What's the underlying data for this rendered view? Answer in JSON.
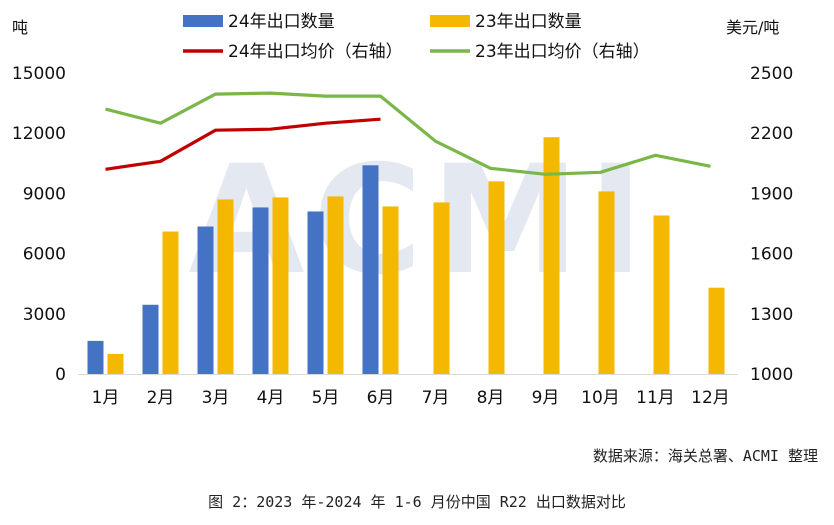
{
  "chart_data": {
    "type": "bar",
    "categories": [
      "1月",
      "2月",
      "3月",
      "4月",
      "5月",
      "6月",
      "7月",
      "8月",
      "9月",
      "10月",
      "11月",
      "12月"
    ],
    "series": [
      {
        "name": "24年出口数量",
        "kind": "bar",
        "axis": "left",
        "color": "#4472C4",
        "values": [
          1650,
          3450,
          7350,
          8300,
          8100,
          10400,
          null,
          null,
          null,
          null,
          null,
          null
        ]
      },
      {
        "name": "23年出口数量",
        "kind": "bar",
        "axis": "left",
        "color": "#F5B800",
        "values": [
          1000,
          7100,
          8700,
          8800,
          8850,
          8350,
          8550,
          9600,
          11800,
          9100,
          7900,
          4300
        ]
      },
      {
        "name": "24年出口均价（右轴）",
        "kind": "line",
        "axis": "right",
        "color": "#C00000",
        "values": [
          2020,
          2060,
          2215,
          2220,
          2250,
          2270,
          null,
          null,
          null,
          null,
          null,
          null
        ]
      },
      {
        "name": "23年出口均价（右轴）",
        "kind": "line",
        "axis": "right",
        "color": "#7AB648",
        "values": [
          2320,
          2250,
          2395,
          2400,
          2385,
          2385,
          2160,
          2025,
          1995,
          2005,
          2090,
          2035
        ]
      }
    ],
    "left_axis": {
      "label": "吨",
      "ylim": [
        0,
        15000
      ],
      "ticks": [
        "0",
        "3000",
        "6000",
        "9000",
        "12000",
        "15000"
      ]
    },
    "right_axis": {
      "label": "美元/吨",
      "ylim": [
        1000,
        2500
      ],
      "ticks": [
        "1000",
        "1300",
        "1600",
        "1900",
        "2200",
        "2500"
      ]
    },
    "legend_placement": "top",
    "grid": true
  },
  "watermark_text": "ACMI",
  "source_text": "数据来源：海关总署、ACMI 整理",
  "caption_text": "图 2：2023 年-2024 年 1-6 月份中国 R22 出口数据对比"
}
